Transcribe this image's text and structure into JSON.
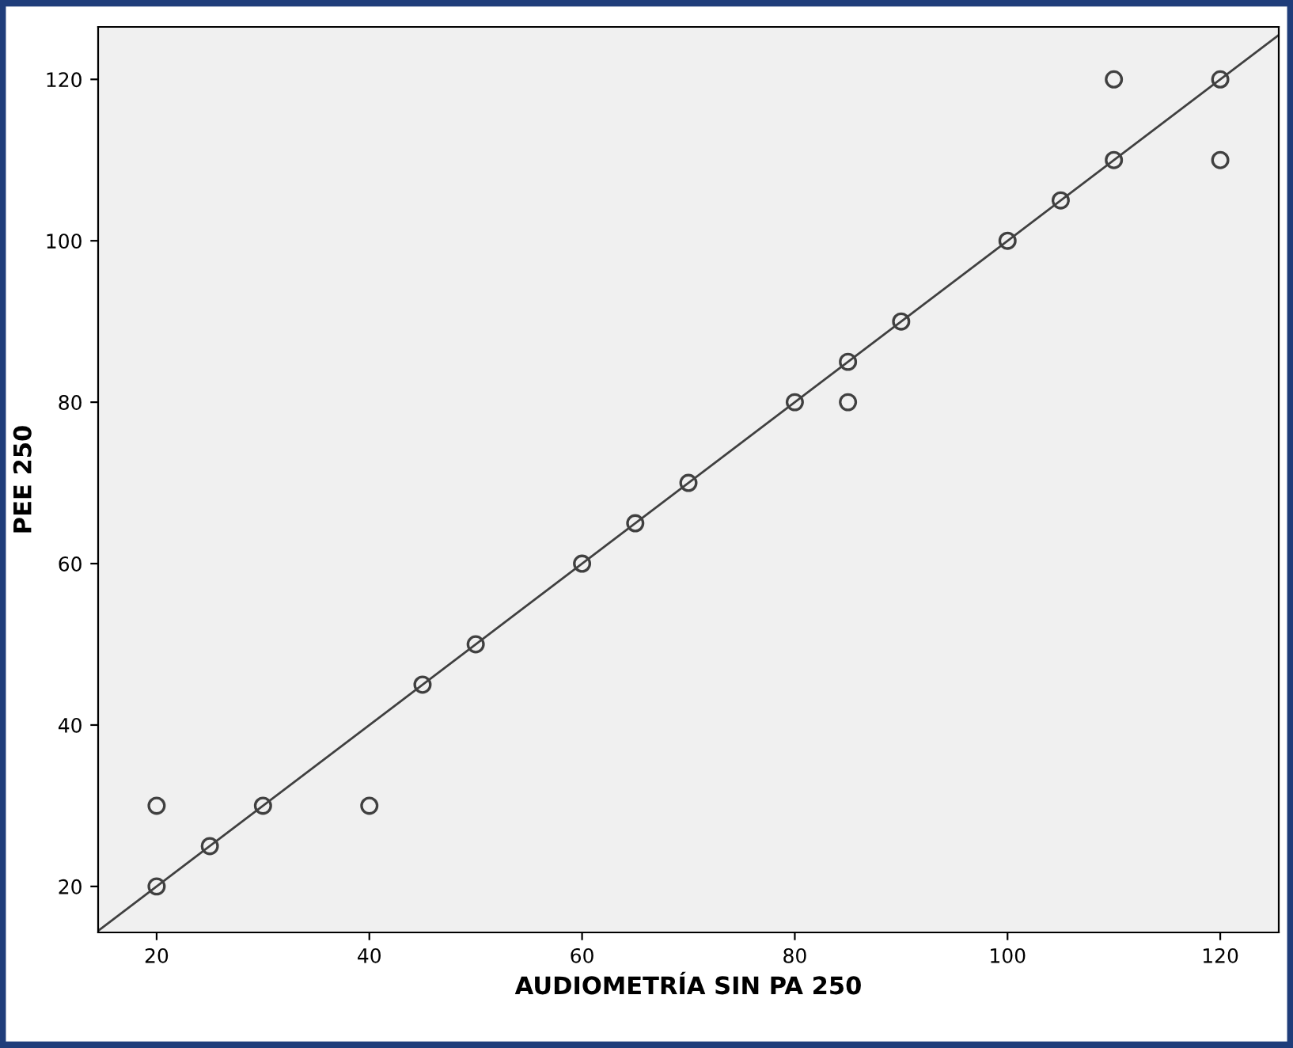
{
  "chart_data": {
    "type": "scatter",
    "xlabel": "AUDIOMETRÍA SIN PA 250",
    "ylabel": "PEE 250",
    "xlim": [
      14.5,
      125.5
    ],
    "ylim": [
      14.3,
      126.5
    ],
    "xticks": [
      20,
      40,
      60,
      80,
      100,
      120
    ],
    "yticks": [
      20,
      40,
      60,
      80,
      100,
      120
    ],
    "grid": false,
    "legend": false,
    "series": [
      {
        "type": "scatter",
        "marker": "circle",
        "color": "#404040",
        "x": [
          20,
          20,
          25,
          30,
          40,
          45,
          50,
          60,
          65,
          70,
          80,
          85,
          85,
          90,
          100,
          105,
          110,
          110,
          120,
          120
        ],
        "values": [
          30,
          20,
          25,
          30,
          30,
          45,
          50,
          60,
          65,
          70,
          80,
          85,
          80,
          90,
          100,
          105,
          110,
          120,
          120,
          110
        ]
      },
      {
        "type": "line",
        "marker": "none",
        "line_style": "solid",
        "color": "#404040",
        "x": [
          14.5,
          125.5
        ],
        "values": [
          14.5,
          125.5
        ]
      }
    ]
  }
}
